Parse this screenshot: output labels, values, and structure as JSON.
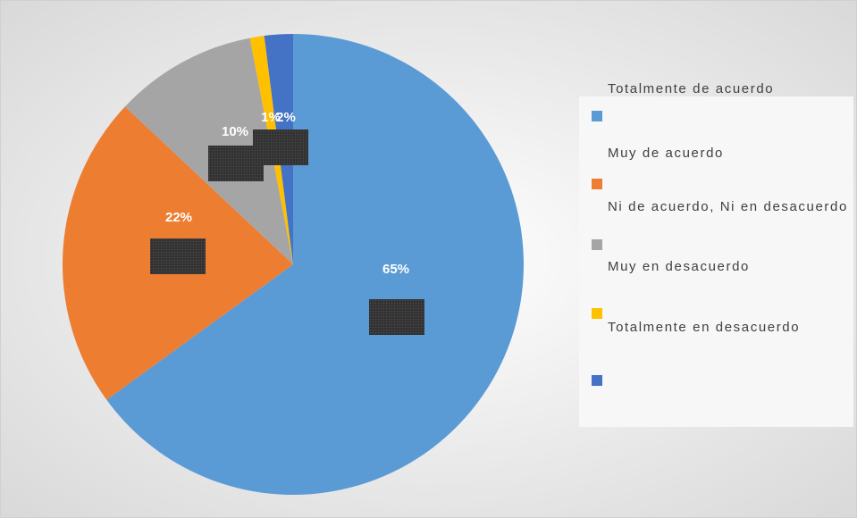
{
  "chart_data": {
    "type": "pie",
    "categories": [
      "Totalmente de acuerdo",
      "Muy de acuerdo",
      "Ni de acuerdo, Ni en desacuerdo",
      "Muy en desacuerdo",
      "Totalmente en desacuerdo"
    ],
    "values": [
      65,
      22,
      10,
      1,
      2
    ],
    "value_labels": [
      "65%",
      "22%",
      "10%",
      "1%",
      "2%"
    ],
    "colors": [
      "#5b9bd5",
      "#ed7d31",
      "#a5a5a5",
      "#ffc000",
      "#4472c4"
    ],
    "legend": "right"
  }
}
